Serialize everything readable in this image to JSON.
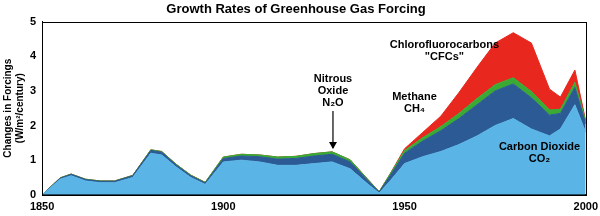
{
  "chart_data": {
    "type": "area",
    "title": "Growth Rates of Greenhouse Gas Forcing",
    "y_label": [
      "Changes in Forcings",
      "(W/m²/century)"
    ],
    "x": [
      1850,
      1855,
      1858,
      1862,
      1866,
      1870,
      1875,
      1880,
      1883,
      1887,
      1891,
      1895,
      1900,
      1905,
      1910,
      1915,
      1920,
      1925,
      1930,
      1935,
      1940,
      1943,
      1946,
      1950,
      1955,
      1960,
      1965,
      1970,
      1975,
      1980,
      1985,
      1990,
      1993,
      1997,
      2000
    ],
    "series": [
      {
        "name": "Carbon Dioxide CO₂",
        "color": "#5ab4e5",
        "values": [
          0,
          0.45,
          0.55,
          0.4,
          0.35,
          0.35,
          0.5,
          1.2,
          1.15,
          0.8,
          0.5,
          0.3,
          0.95,
          1.0,
          0.95,
          0.85,
          0.85,
          0.9,
          0.95,
          0.75,
          0.3,
          0.05,
          0.4,
          0.9,
          1.1,
          1.25,
          1.45,
          1.7,
          2.0,
          2.2,
          1.9,
          1.7,
          1.9,
          2.6,
          1.8
        ]
      },
      {
        "name": "Methane CH₄",
        "color": "#2b5a94",
        "values": [
          0,
          0.03,
          0.04,
          0.04,
          0.04,
          0.04,
          0.05,
          0.08,
          0.08,
          0.06,
          0.05,
          0.04,
          0.1,
          0.12,
          0.15,
          0.18,
          0.2,
          0.22,
          0.22,
          0.2,
          0.1,
          0.03,
          0.15,
          0.3,
          0.45,
          0.6,
          0.75,
          0.9,
          1.0,
          1.0,
          0.9,
          0.6,
          0.45,
          0.5,
          0.25
        ]
      },
      {
        "name": "Nitrous Oxide N₂O",
        "color": "#3aaa35",
        "values": [
          0,
          0.01,
          0.01,
          0.01,
          0.01,
          0.01,
          0.01,
          0.02,
          0.02,
          0.02,
          0.02,
          0.02,
          0.04,
          0.05,
          0.05,
          0.06,
          0.06,
          0.07,
          0.07,
          0.06,
          0.03,
          0.01,
          0.05,
          0.08,
          0.1,
          0.12,
          0.15,
          0.18,
          0.18,
          0.18,
          0.18,
          0.15,
          0.12,
          0.15,
          0.08
        ]
      },
      {
        "name": "Chlorofluorocarbons \"CFCs\"",
        "color": "#e8281e",
        "values": [
          0,
          0,
          0,
          0,
          0,
          0,
          0,
          0,
          0,
          0,
          0,
          0,
          0,
          0,
          0,
          0,
          0,
          0,
          0,
          0,
          0,
          0,
          0,
          0.05,
          0.15,
          0.3,
          0.6,
          0.9,
          1.2,
          1.3,
          1.4,
          0.6,
          0.35,
          0.35,
          0
        ]
      }
    ],
    "stacked": true,
    "xlim": [
      1850,
      2000
    ],
    "xticks": [
      1850,
      1900,
      1950,
      2000
    ],
    "ylim": [
      0,
      5
    ],
    "yticks": [
      0,
      1,
      2,
      3,
      4,
      5
    ],
    "grid": false
  }
}
